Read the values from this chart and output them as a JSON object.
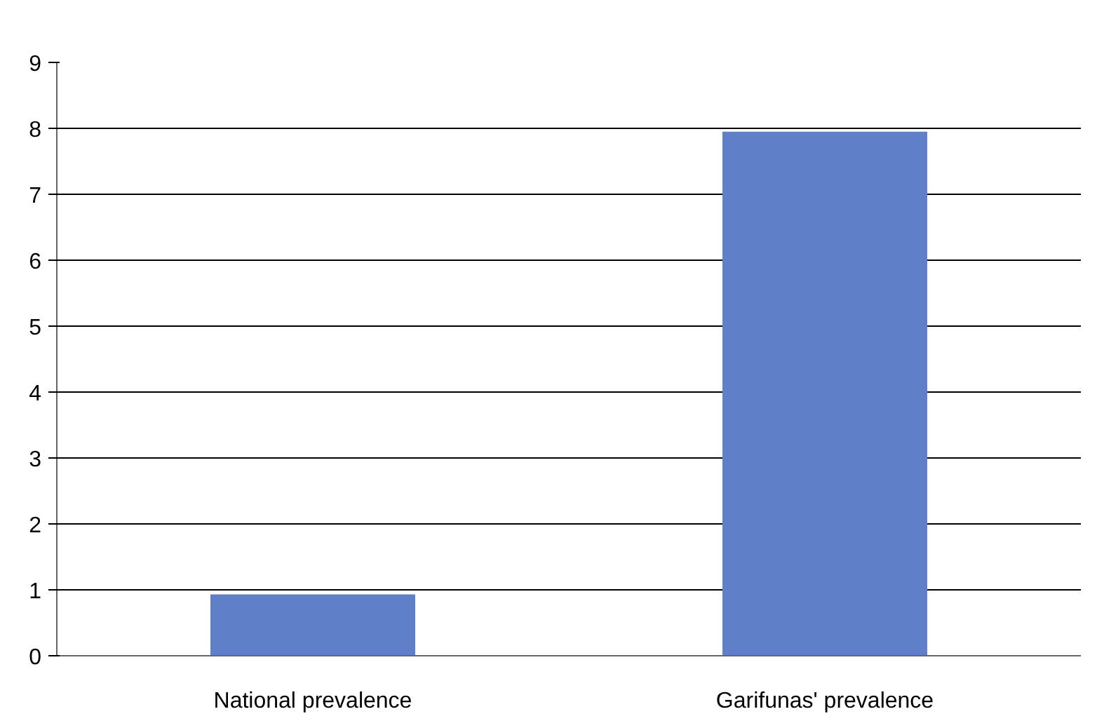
{
  "chart_data": {
    "type": "bar",
    "categories": [
      "National prevalence",
      "Garifunas' prevalence"
    ],
    "values": [
      0.93,
      7.95
    ],
    "color": "#5f7fc8",
    "ylim": [
      0,
      9
    ],
    "yticks": [
      0,
      1,
      2,
      3,
      4,
      5,
      6,
      7,
      8,
      9
    ],
    "grid": "y"
  }
}
